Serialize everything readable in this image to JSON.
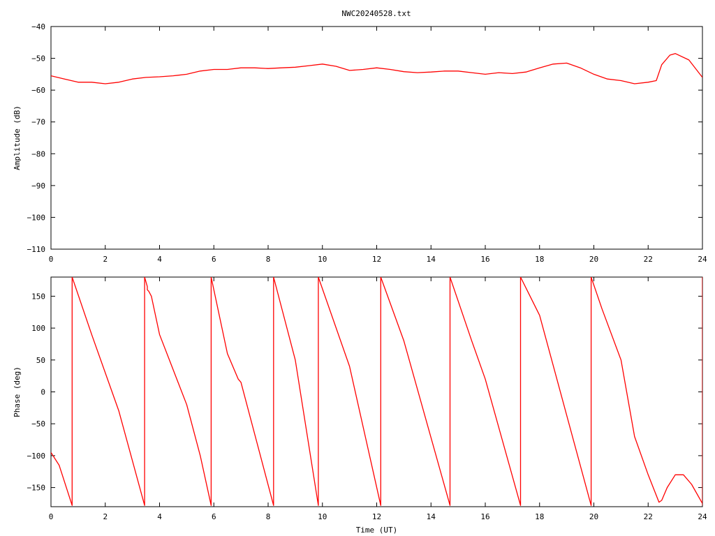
{
  "figure_title": "NWC20240528.txt",
  "colors": {
    "series": "#ff0000",
    "axis": "#000000",
    "background": "#ffffff"
  },
  "chart_data": [
    {
      "type": "line",
      "title": "NWC20240528.txt",
      "xlabel": "",
      "ylabel": "Amplitude (dB)",
      "xlim": [
        0,
        24
      ],
      "ylim": [
        -110,
        -40
      ],
      "xticks": [
        0,
        2,
        4,
        6,
        8,
        10,
        12,
        14,
        16,
        18,
        20,
        22,
        24
      ],
      "yticks": [
        -110,
        -100,
        -90,
        -80,
        -70,
        -60,
        -50,
        -40
      ],
      "grid": false,
      "series": [
        {
          "x": [
            0,
            0.5,
            1,
            1.5,
            2,
            2.5,
            3,
            3.5,
            4,
            4.5,
            5,
            5.5,
            6,
            6.5,
            7,
            7.5,
            8,
            8.5,
            9,
            9.5,
            10,
            10.5,
            11,
            11.5,
            12,
            12.5,
            13,
            13.5,
            14,
            14.5,
            15,
            15.5,
            16,
            16.5,
            17,
            17.5,
            18,
            18.5,
            19,
            19.5,
            20,
            20.5,
            21,
            21.5,
            22,
            22.3,
            22.5,
            22.8,
            23,
            23.5,
            24
          ],
          "y": [
            -55.5,
            -56.5,
            -57.5,
            -57.5,
            -58,
            -57.5,
            -56.5,
            -56,
            -55.8,
            -55.5,
            -55,
            -54,
            -53.5,
            -53.5,
            -53,
            -53,
            -53.2,
            -53,
            -52.8,
            -52.3,
            -51.8,
            -52.5,
            -53.8,
            -53.5,
            -53,
            -53.5,
            -54.2,
            -54.5,
            -54.3,
            -54,
            -54,
            -54.5,
            -55,
            -54.5,
            -54.8,
            -54.3,
            -53,
            -51.8,
            -51.5,
            -53,
            -55,
            -56.5,
            -57,
            -58,
            -57.5,
            -57,
            -52,
            -49,
            -48.5,
            -50.5,
            -56
          ]
        }
      ]
    },
    {
      "type": "line",
      "title": "",
      "xlabel": "Time (UT)",
      "ylabel": "Phase (deg)",
      "xlim": [
        0,
        24
      ],
      "ylim": [
        -180,
        180
      ],
      "xticks": [
        0,
        2,
        4,
        6,
        8,
        10,
        12,
        14,
        16,
        18,
        20,
        22,
        24
      ],
      "yticks": [
        -150,
        -100,
        -50,
        0,
        50,
        100,
        150
      ],
      "grid": false,
      "series": [
        {
          "x": [
            0,
            0.3,
            0.78,
            0.78,
            1.5,
            2.5,
            3.45,
            3.45,
            3.55,
            3.55,
            3.6,
            3.7,
            4,
            5,
            5.5,
            5.9,
            5.9,
            6.5,
            6.9,
            7,
            8.2,
            8.2,
            9,
            9.85,
            9.85,
            11,
            12.15,
            12.15,
            13,
            14.7,
            14.7,
            15.5,
            16,
            17.3,
            17.3,
            18,
            19.9,
            19.9,
            20.3,
            21,
            21.5,
            22,
            22.4,
            22.5,
            22.7,
            23,
            23.3,
            23.6,
            24,
            24,
            24
          ],
          "y": [
            -95,
            -115,
            -178,
            180,
            90,
            -30,
            -178,
            180,
            165,
            160,
            158,
            150,
            90,
            -20,
            -100,
            -178,
            180,
            60,
            20,
            15,
            -178,
            180,
            50,
            -178,
            180,
            40,
            -178,
            180,
            80,
            -178,
            180,
            80,
            20,
            -178,
            180,
            120,
            -178,
            180,
            130,
            50,
            -70,
            -130,
            -173,
            -170,
            -150,
            -130,
            -130,
            -145,
            -175,
            180,
            -178
          ]
        }
      ]
    }
  ]
}
